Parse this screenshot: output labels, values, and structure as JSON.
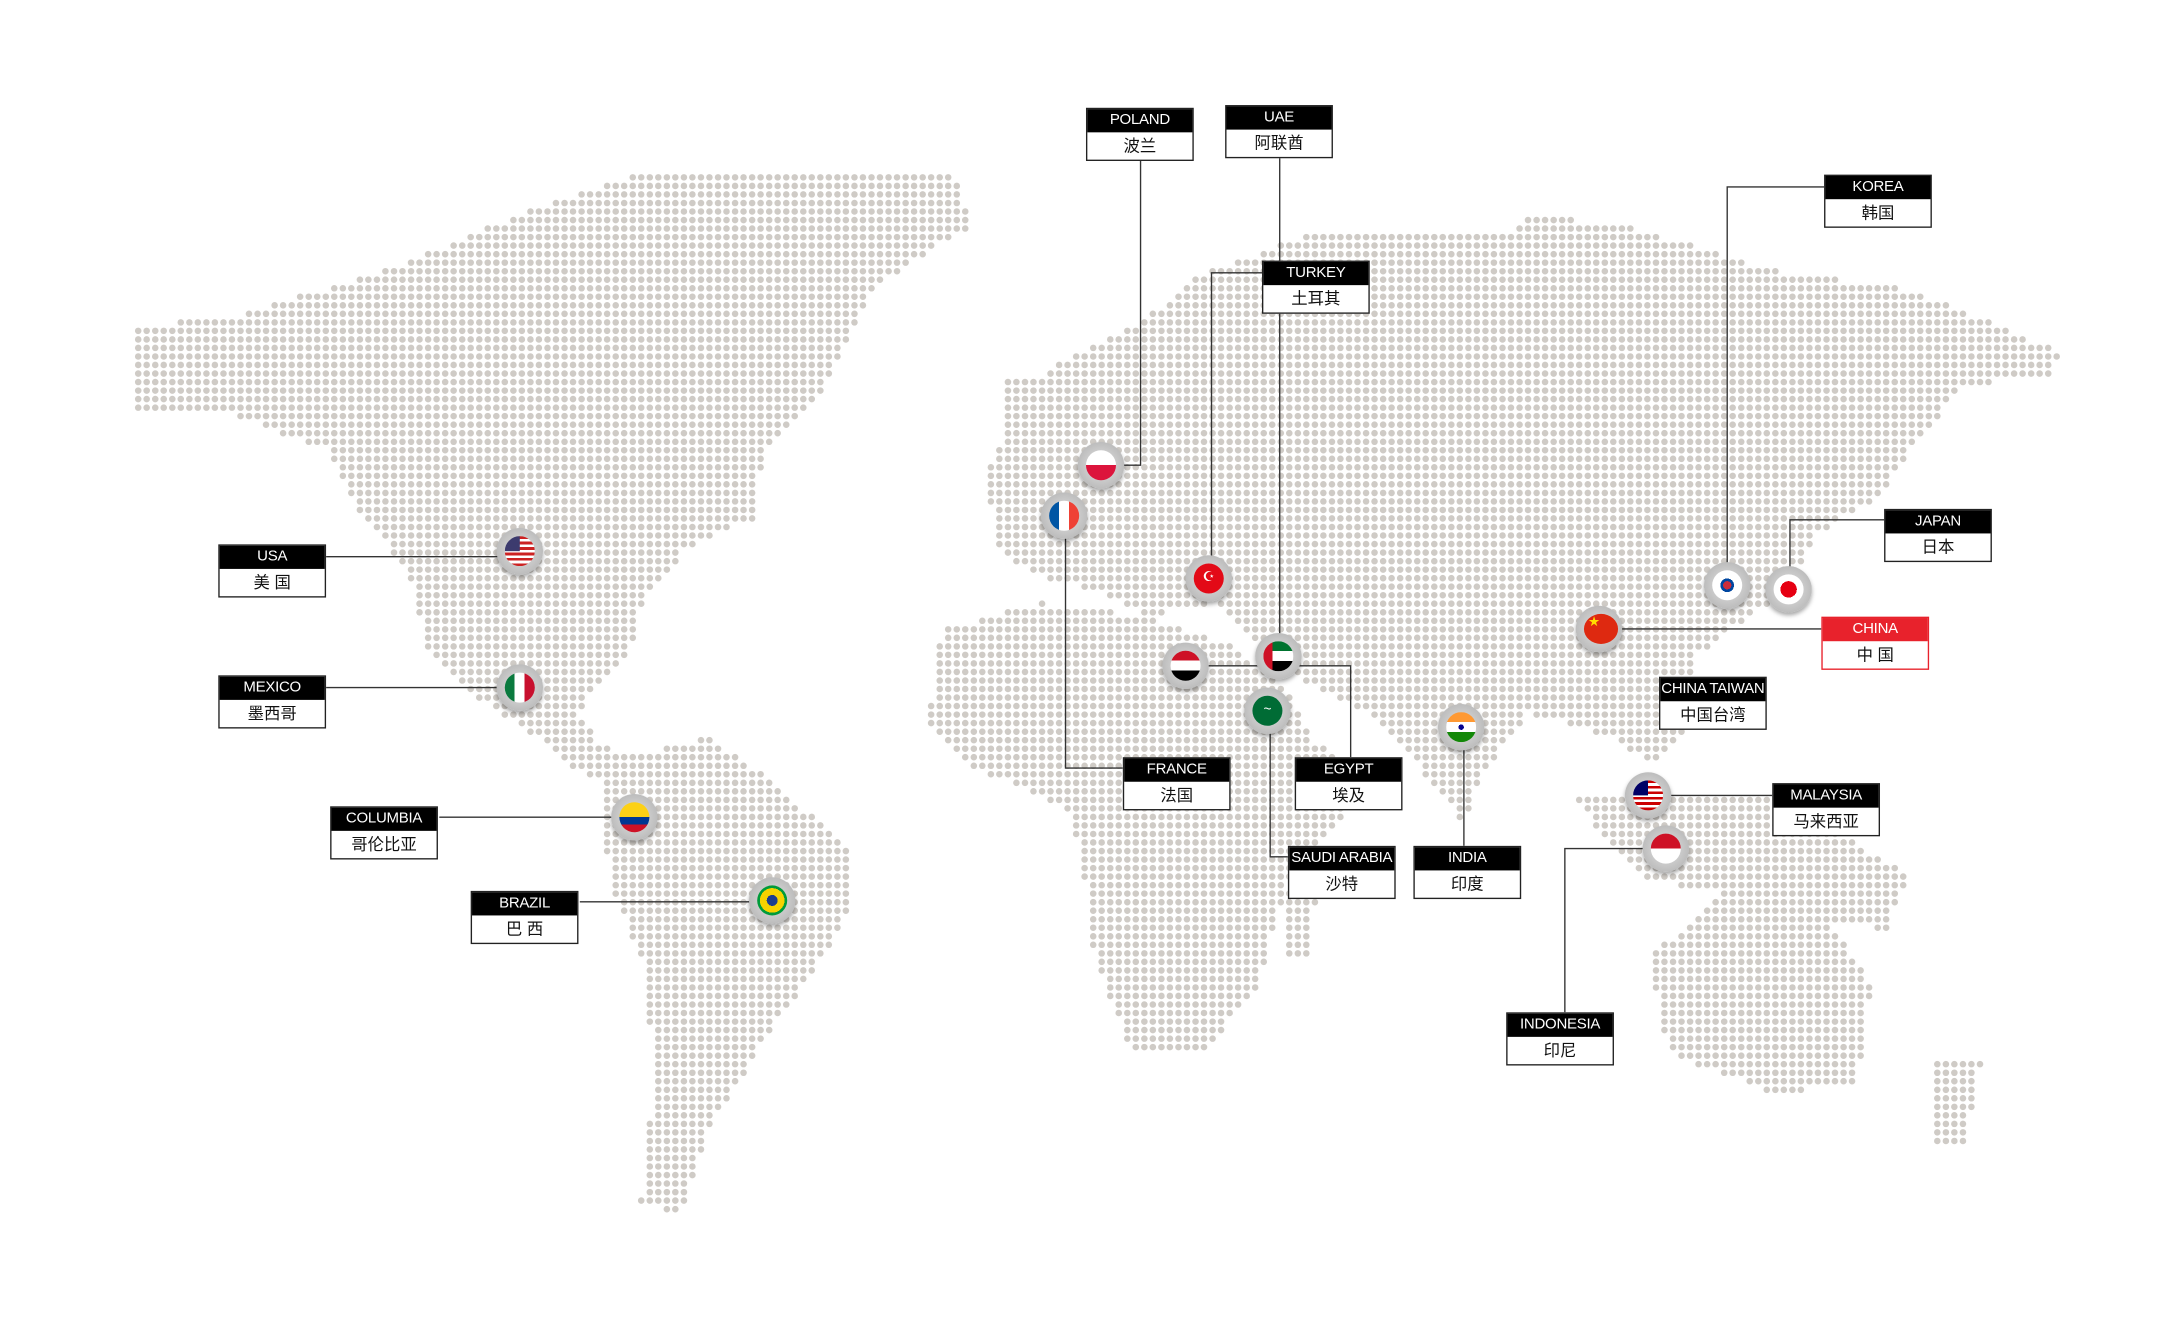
{
  "colors": {
    "dot": "#cfcbc6",
    "label_header": "#000000",
    "highlight": "#e8222c",
    "line": "#333333"
  },
  "locations": [
    {
      "en": "USA",
      "zh": "美 国",
      "flag": "usa-flag"
    },
    {
      "en": "MEXICO",
      "zh": "墨西哥",
      "flag": "mexico-flag"
    },
    {
      "en": "COLUMBIA",
      "zh": "哥伦比亚",
      "flag": "colombia-flag"
    },
    {
      "en": "BRAZIL",
      "zh": "巴 西",
      "flag": "brazil-flag"
    },
    {
      "en": "POLAND",
      "zh": "波兰",
      "flag": "poland-flag"
    },
    {
      "en": "UAE",
      "zh": "阿联酋",
      "flag": "uae-flag"
    },
    {
      "en": "TURKEY",
      "zh": "土耳其",
      "flag": "turkey-flag"
    },
    {
      "en": "FRANCE",
      "zh": "法国",
      "flag": "france-flag"
    },
    {
      "en": "EGYPT",
      "zh": "埃及",
      "flag": "egypt-flag"
    },
    {
      "en": "SAUDI ARABIA",
      "zh": "沙特",
      "flag": "saudi-arabia-flag"
    },
    {
      "en": "INDIA",
      "zh": "印度",
      "flag": "india-flag"
    },
    {
      "en": "KOREA",
      "zh": "韩国",
      "flag": "korea-flag"
    },
    {
      "en": "JAPAN",
      "zh": "日本",
      "flag": "japan-flag"
    },
    {
      "en": "CHINA",
      "zh": "中 国",
      "flag": "china-flag",
      "highlight": true
    },
    {
      "en": "CHINA TAIWAN",
      "zh": "中国台湾"
    },
    {
      "en": "MALAYSIA",
      "zh": "马来西亚",
      "flag": "malaysia-flag"
    },
    {
      "en": "INDONESIA",
      "zh": "印尼",
      "flag": "indonesia-flag"
    }
  ]
}
